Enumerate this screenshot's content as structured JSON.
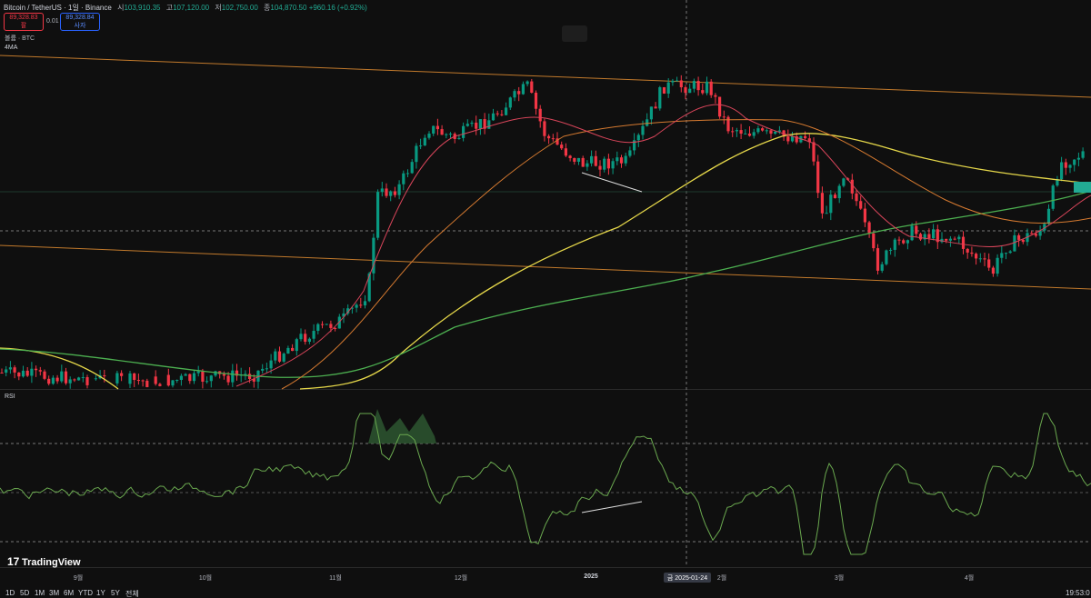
{
  "header": {
    "symbol": "Bitcoin / TetherUS · 1일 · Binance",
    "ohlc": [
      {
        "label": "시",
        "value": "103,910.35"
      },
      {
        "label": "고",
        "value": "107,120.00"
      },
      {
        "label": "저",
        "value": "102,750.00"
      },
      {
        "label": "종",
        "value": "104,870.50"
      }
    ],
    "change": "+960.16 (+0.92%)"
  },
  "trade": {
    "sell_price": "89,328.83",
    "sell_label": "팔",
    "spread": "0.01",
    "buy_price": "89,328.84",
    "buy_label": "사자"
  },
  "indicators": {
    "volume": "볼륨 · BTC",
    "ma": "4MA",
    "rsi": "RSI"
  },
  "time_axis": {
    "labels": [
      "9월",
      "10월",
      "11월",
      "12월",
      "2025",
      "2월",
      "3월",
      "4월"
    ],
    "crosshair": "금 2025-01-24"
  },
  "logo": "TradingView",
  "toolbar": {
    "ranges": [
      "1D",
      "5D",
      "1M",
      "3M",
      "6M",
      "YTD",
      "1Y",
      "5Y",
      "전체"
    ],
    "clock": "19:53:0"
  }
}
